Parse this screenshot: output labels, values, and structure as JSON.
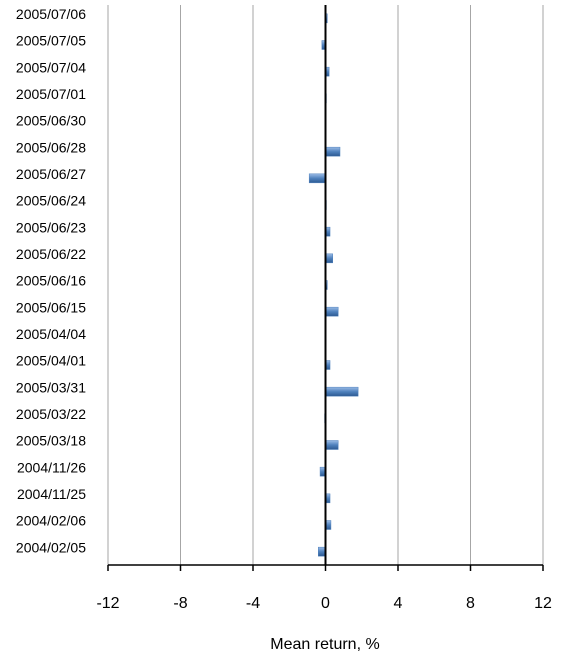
{
  "chart_data": {
    "type": "barh",
    "x_label": "Mean return, %",
    "categories": [
      "2005/07/06",
      "2005/07/05",
      "2005/07/04",
      "2005/07/01",
      "2005/06/30",
      "2005/06/28",
      "2005/06/27",
      "2005/06/24",
      "2005/06/23",
      "2005/06/22",
      "2005/06/16",
      "2005/06/15",
      "2005/04/04",
      "2005/04/01",
      "2005/03/31",
      "2005/03/22",
      "2005/03/18",
      "2004/11/26",
      "2004/11/25",
      "2004/02/06",
      "2004/02/05"
    ],
    "values": [
      0.1,
      -0.2,
      0.2,
      0.05,
      0,
      0.8,
      -0.9,
      0.05,
      0.25,
      0.4,
      0.1,
      0.7,
      0.03,
      0.25,
      1.8,
      -0.05,
      0.7,
      -0.3,
      0.25,
      0.3,
      -0.4
    ],
    "color": "#4f81bd",
    "xlim": [
      -12,
      12
    ],
    "xticks": [
      -12,
      -8,
      -4,
      0,
      4,
      8,
      12
    ],
    "grid": true
  }
}
